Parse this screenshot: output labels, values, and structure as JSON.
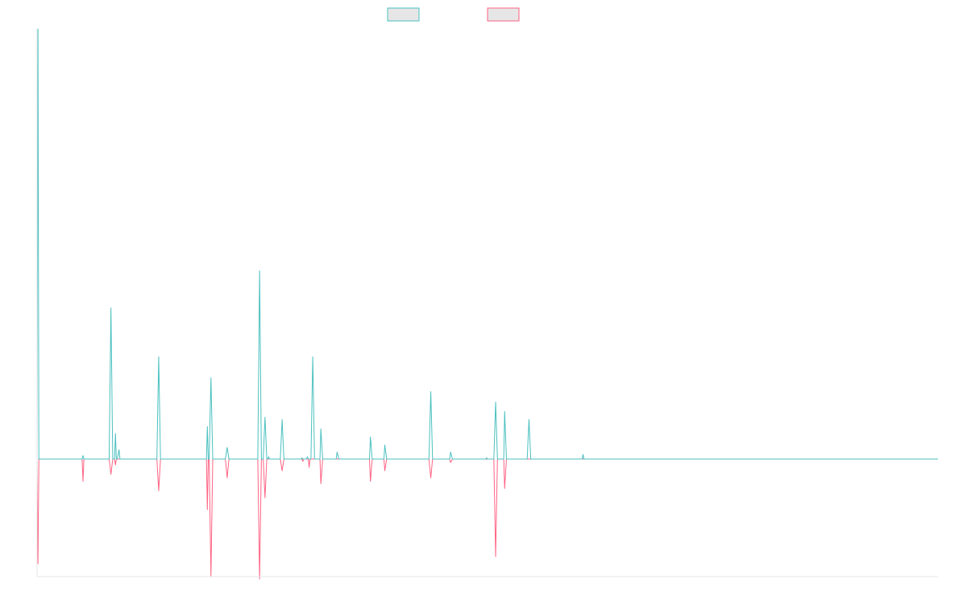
{
  "chart_data": {
    "type": "line",
    "legend_position": "top-center",
    "grid": false,
    "xlim": [
      0,
      1000
    ],
    "ylim": [
      -100,
      370
    ],
    "series": [
      {
        "color": "#4bc0c0",
        "fill": "#e6e6e6",
        "direction": "up",
        "points": [
          [
            0,
            0
          ],
          [
            1,
            370
          ],
          [
            2,
            0
          ],
          [
            50,
            0
          ],
          [
            51,
            3
          ],
          [
            52,
            0
          ],
          [
            80,
            0
          ],
          [
            82,
            130
          ],
          [
            84,
            0
          ],
          [
            86,
            0
          ],
          [
            87,
            22
          ],
          [
            88,
            0
          ],
          [
            89,
            0
          ],
          [
            91,
            8
          ],
          [
            92,
            0
          ],
          [
            133,
            0
          ],
          [
            135,
            88
          ],
          [
            137,
            0
          ],
          [
            188,
            0
          ],
          [
            189,
            28
          ],
          [
            190,
            0
          ],
          [
            191,
            0
          ],
          [
            193,
            70
          ],
          [
            195,
            0
          ],
          [
            209,
            0
          ],
          [
            211,
            10
          ],
          [
            213,
            0
          ],
          [
            245,
            0
          ],
          [
            247,
            162
          ],
          [
            249,
            0
          ],
          [
            251,
            0
          ],
          [
            253,
            36
          ],
          [
            255,
            0
          ],
          [
            256,
            0
          ],
          [
            257,
            2
          ],
          [
            258,
            0
          ],
          [
            270,
            0
          ],
          [
            272,
            34
          ],
          [
            274,
            0
          ],
          [
            293,
            0
          ],
          [
            294,
            1
          ],
          [
            295,
            0
          ],
          [
            299,
            0
          ],
          [
            300,
            2
          ],
          [
            301,
            0
          ],
          [
            304,
            0
          ],
          [
            306,
            88
          ],
          [
            308,
            0
          ],
          [
            314,
            0
          ],
          [
            315,
            26
          ],
          [
            317,
            0
          ],
          [
            332,
            0
          ],
          [
            333,
            6
          ],
          [
            335,
            0
          ],
          [
            369,
            0
          ],
          [
            370,
            19
          ],
          [
            372,
            0
          ],
          [
            385,
            0
          ],
          [
            386,
            12
          ],
          [
            388,
            0
          ],
          [
            435,
            0
          ],
          [
            437,
            58
          ],
          [
            439,
            0
          ],
          [
            458,
            0
          ],
          [
            459,
            6
          ],
          [
            461,
            0
          ],
          [
            498,
            0
          ],
          [
            499,
            1
          ],
          [
            500,
            0
          ],
          [
            507,
            0
          ],
          [
            509,
            49
          ],
          [
            511,
            0
          ],
          [
            518,
            0
          ],
          [
            519,
            41
          ],
          [
            521,
            0
          ],
          [
            544,
            0
          ],
          [
            546,
            34
          ],
          [
            548,
            0
          ],
          [
            605,
            0
          ],
          [
            606,
            4
          ],
          [
            607,
            0
          ],
          [
            1000,
            0
          ]
        ]
      },
      {
        "color": "#ff6384",
        "fill": "#e6e6e6",
        "direction": "down",
        "points": [
          [
            0,
            0
          ],
          [
            1,
            -89
          ],
          [
            2,
            0
          ],
          [
            50,
            0
          ],
          [
            51,
            -19
          ],
          [
            52,
            0
          ],
          [
            80,
            0
          ],
          [
            82,
            -13
          ],
          [
            84,
            0
          ],
          [
            86,
            0
          ],
          [
            87,
            -5
          ],
          [
            88,
            0
          ],
          [
            133,
            0
          ],
          [
            135,
            -27
          ],
          [
            137,
            0
          ],
          [
            188,
            0
          ],
          [
            189,
            -43
          ],
          [
            190,
            0
          ],
          [
            191,
            0
          ],
          [
            193,
            -100
          ],
          [
            195,
            0
          ],
          [
            209,
            0
          ],
          [
            211,
            -16
          ],
          [
            213,
            0
          ],
          [
            245,
            0
          ],
          [
            247,
            -102
          ],
          [
            249,
            0
          ],
          [
            251,
            0
          ],
          [
            253,
            -33
          ],
          [
            255,
            0
          ],
          [
            270,
            0
          ],
          [
            272,
            -10
          ],
          [
            274,
            0
          ],
          [
            294,
            0
          ],
          [
            295,
            -2
          ],
          [
            296,
            0
          ],
          [
            301,
            0
          ],
          [
            302,
            -7
          ],
          [
            303,
            0
          ],
          [
            314,
            0
          ],
          [
            315,
            -21
          ],
          [
            317,
            0
          ],
          [
            369,
            0
          ],
          [
            370,
            -19
          ],
          [
            372,
            0
          ],
          [
            385,
            0
          ],
          [
            386,
            -10
          ],
          [
            388,
            0
          ],
          [
            435,
            0
          ],
          [
            437,
            -16
          ],
          [
            439,
            0
          ],
          [
            458,
            0
          ],
          [
            459,
            -3
          ],
          [
            461,
            0
          ],
          [
            507,
            0
          ],
          [
            509,
            -83
          ],
          [
            511,
            0
          ],
          [
            518,
            0
          ],
          [
            519,
            -25
          ],
          [
            521,
            0
          ],
          [
            1000,
            0
          ]
        ]
      }
    ]
  }
}
